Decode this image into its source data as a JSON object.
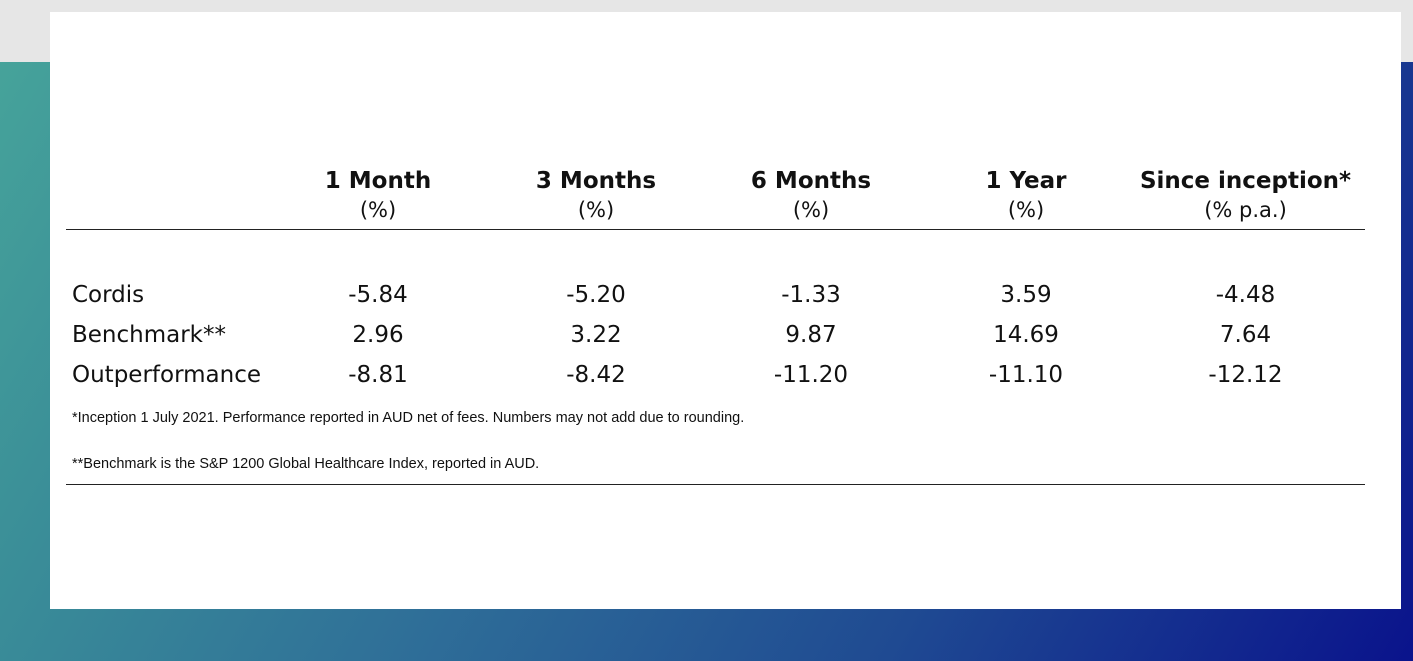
{
  "table": {
    "columns": [
      {
        "title": "1 Month",
        "unit": "(%)"
      },
      {
        "title": "3 Months",
        "unit": "(%)"
      },
      {
        "title": "6 Months",
        "unit": "(%)"
      },
      {
        "title": "1 Year",
        "unit": "(%)"
      },
      {
        "title": "Since inception*",
        "unit": "(% p.a.)"
      }
    ],
    "rows": [
      {
        "label": "Cordis",
        "values": [
          "-5.84",
          "-5.20",
          "-1.33",
          "3.59",
          "-4.48"
        ]
      },
      {
        "label": "Benchmark**",
        "values": [
          "2.96",
          "3.22",
          "9.87",
          "14.69",
          "7.64"
        ]
      },
      {
        "label": "Outperformance",
        "values": [
          "-8.81",
          "-8.42",
          "-11.20",
          "-11.10",
          "-12.12"
        ]
      }
    ]
  },
  "footnotes": [
    "*Inception 1 July 2021. Performance reported in AUD net of fees. Numbers may not add due to rounding.",
    "**Benchmark is the S&P 1200 Global Healthcare Index, reported in AUD."
  ]
}
